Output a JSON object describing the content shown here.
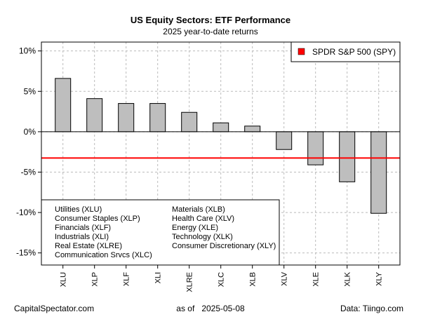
{
  "chart_data": {
    "type": "bar",
    "title": "US Equity Sectors: ETF Performance",
    "subtitle": "2025 year-to-date returns",
    "categories": [
      "XLU",
      "XLP",
      "XLF",
      "XLI",
      "XLRE",
      "XLC",
      "XLB",
      "XLV",
      "XLE",
      "XLK",
      "XLY"
    ],
    "values": [
      6.6,
      4.1,
      3.5,
      3.5,
      2.4,
      1.1,
      0.7,
      -2.2,
      -4.1,
      -6.2,
      -10.1
    ],
    "ylim": [
      -16.5,
      11.1
    ],
    "yticks": [
      10,
      5,
      0,
      -5,
      -10,
      -15
    ],
    "ytick_labels": [
      "10%",
      "5%",
      "0%",
      "-5%",
      "-10%",
      "-15%"
    ],
    "grid": true,
    "reference_line": {
      "label": "SPDR S&P 500 (SPY)",
      "value": -3.25,
      "color": "#ff0000"
    },
    "bar_color": "#bebebe",
    "legend_position": "top-right",
    "sector_legend": {
      "position": "bottom-left",
      "items": [
        "Utilities (XLU)",
        "Consumer Staples (XLP)",
        "Financials (XLF)",
        "Industrials (XLI)",
        "Real Estate (XLRE)",
        "Communication Srvcs (XLC)",
        "Materials (XLB)",
        "Health Care (XLV)",
        "Energy (XLE)",
        "Technology (XLK)",
        "Consumer Discretionary (XLY)"
      ]
    }
  },
  "footer": {
    "left": "CapitalSpectator.com",
    "center": "as of   2025-05-08",
    "right": "Data: Tiingo.com"
  }
}
